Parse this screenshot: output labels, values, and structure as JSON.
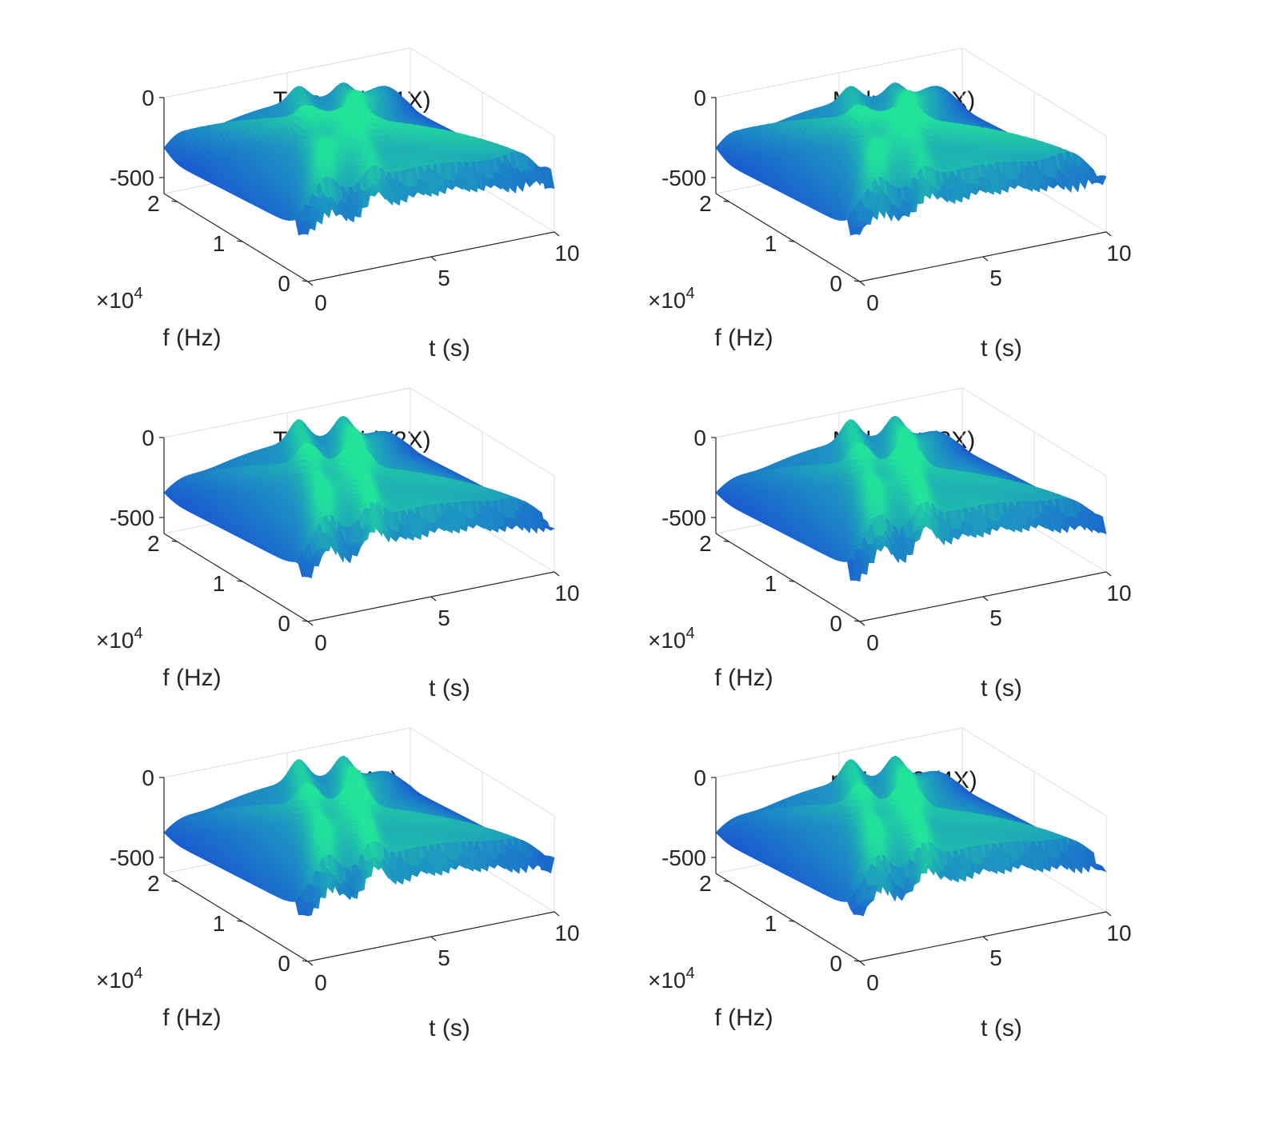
{
  "chart_data": [
    {
      "type": "surface",
      "title": "Trapezoid (1X)",
      "xlabel": "t (s)",
      "ylabel": "f (Hz)",
      "y_exponent": "×10",
      "y_exponent_power": "4",
      "xlim": [
        0,
        10
      ],
      "ylim": [
        0,
        22050
      ],
      "zlim": [
        -600,
        0
      ],
      "xticks": [
        "0",
        "5",
        "10"
      ],
      "yticks": [
        "0",
        "1",
        "2"
      ],
      "zticks": [
        "0",
        "-500"
      ],
      "grid": true,
      "colormap": [
        "#1a3fd6",
        "#1d8fc4",
        "#22e39a"
      ]
    },
    {
      "type": "surface",
      "title": "Midpoint (1X)",
      "xlabel": "t (s)",
      "ylabel": "f (Hz)",
      "y_exponent": "×10",
      "y_exponent_power": "4",
      "xlim": [
        0,
        10
      ],
      "ylim": [
        0,
        22050
      ],
      "zlim": [
        -600,
        0
      ],
      "xticks": [
        "0",
        "5",
        "10"
      ],
      "yticks": [
        "0",
        "1",
        "2"
      ],
      "zticks": [
        "0",
        "-500"
      ],
      "grid": true,
      "colormap": [
        "#1a3fd6",
        "#1d8fc4",
        "#22e39a"
      ]
    },
    {
      "type": "surface",
      "title": "Trapezoid (2X)",
      "xlabel": "t (s)",
      "ylabel": "f (Hz)",
      "y_exponent": "×10",
      "y_exponent_power": "4",
      "xlim": [
        0,
        10
      ],
      "ylim": [
        0,
        22050
      ],
      "zlim": [
        -600,
        0
      ],
      "xticks": [
        "0",
        "5",
        "10"
      ],
      "yticks": [
        "0",
        "1",
        "2"
      ],
      "zticks": [
        "0",
        "-500"
      ],
      "grid": true,
      "colormap": [
        "#1a3fd6",
        "#1d8fc4",
        "#22e39a"
      ]
    },
    {
      "type": "surface",
      "title": "Midpoint (2X)",
      "xlabel": "t (s)",
      "ylabel": "f (Hz)",
      "y_exponent": "×10",
      "y_exponent_power": "4",
      "xlim": [
        0,
        10
      ],
      "ylim": [
        0,
        22050
      ],
      "zlim": [
        -600,
        0
      ],
      "xticks": [
        "0",
        "5",
        "10"
      ],
      "yticks": [
        "0",
        "1",
        "2"
      ],
      "zticks": [
        "0",
        "-500"
      ],
      "grid": true,
      "colormap": [
        "#1a3fd6",
        "#1d8fc4",
        "#22e39a"
      ]
    },
    {
      "type": "surface",
      "title": "p=2 (4X)",
      "xlabel": "t (s)",
      "ylabel": "f (Hz)",
      "y_exponent": "×10",
      "y_exponent_power": "4",
      "xlim": [
        0,
        10
      ],
      "ylim": [
        0,
        22050
      ],
      "zlim": [
        -600,
        0
      ],
      "xticks": [
        "0",
        "5",
        "10"
      ],
      "yticks": [
        "0",
        "1",
        "2"
      ],
      "zticks": [
        "0",
        "-500"
      ],
      "grid": true,
      "colormap": [
        "#1a3fd6",
        "#1d8fc4",
        "#22e39a"
      ]
    },
    {
      "type": "surface",
      "title": "p=1, a=2 (4X)",
      "xlabel": "t (s)",
      "ylabel": "f (Hz)",
      "y_exponent": "×10",
      "y_exponent_power": "4",
      "xlim": [
        0,
        10
      ],
      "ylim": [
        0,
        22050
      ],
      "zlim": [
        -600,
        0
      ],
      "xticks": [
        "0",
        "5",
        "10"
      ],
      "yticks": [
        "0",
        "1",
        "2"
      ],
      "zticks": [
        "0",
        "-500"
      ],
      "grid": true,
      "colormap": [
        "#1a3fd6",
        "#1d8fc4",
        "#22e39a"
      ]
    }
  ]
}
